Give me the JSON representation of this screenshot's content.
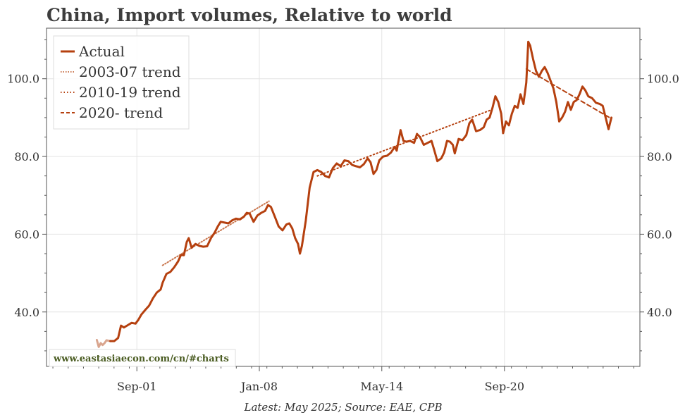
{
  "chart_data": {
    "type": "line",
    "title": "China, Import volumes, Relative to world",
    "source_note": "Latest: May 2025; Source: EAE, CPB",
    "watermark": "www.eastasiaecon.com/cn/#charts",
    "x_ticks": [
      "Sep-01",
      "Jan-08",
      "May-14",
      "Sep-20"
    ],
    "y_ticks": [
      "40.0",
      "60.0",
      "80.0",
      "100.0"
    ],
    "ylim": [
      26,
      113
    ],
    "legend_position": "top-left",
    "grid": true,
    "colors": {
      "actual": "#b5400f",
      "trend_2003": "#c9764e",
      "trend_2010": "#b5400f",
      "trend_2020": "#b5400f",
      "early_segment": "#d9a58e"
    },
    "series": [
      {
        "name": "Actual",
        "style": "solid",
        "points": [
          [
            1999.6,
            32.8
          ],
          [
            1999.7,
            31.0
          ],
          [
            1999.8,
            32.0
          ],
          [
            1999.9,
            31.5
          ],
          [
            2000.0,
            32.0
          ],
          [
            2000.1,
            32.7
          ],
          [
            2000.3,
            32.5
          ],
          [
            2000.5,
            32.5
          ],
          [
            2000.7,
            33.3
          ],
          [
            2000.85,
            36.5
          ],
          [
            2001.0,
            36.0
          ],
          [
            2001.2,
            36.6
          ],
          [
            2001.4,
            37.2
          ],
          [
            2001.6,
            37.0
          ],
          [
            2001.75,
            38.0
          ],
          [
            2001.9,
            39.3
          ],
          [
            2002.1,
            40.5
          ],
          [
            2002.3,
            41.6
          ],
          [
            2002.5,
            43.5
          ],
          [
            2002.7,
            45.0
          ],
          [
            2002.9,
            45.8
          ],
          [
            2003.0,
            47.5
          ],
          [
            2003.2,
            49.8
          ],
          [
            2003.4,
            50.3
          ],
          [
            2003.6,
            51.5
          ],
          [
            2003.8,
            53.0
          ],
          [
            2003.95,
            54.7
          ],
          [
            2004.1,
            54.6
          ],
          [
            2004.25,
            58.0
          ],
          [
            2004.35,
            59.0
          ],
          [
            2004.5,
            56.5
          ],
          [
            2004.7,
            57.5
          ],
          [
            2004.9,
            57.0
          ],
          [
            2005.1,
            56.8
          ],
          [
            2005.3,
            56.9
          ],
          [
            2005.5,
            59.0
          ],
          [
            2005.7,
            60.5
          ],
          [
            2005.85,
            62.0
          ],
          [
            2006.0,
            63.2
          ],
          [
            2006.2,
            63.0
          ],
          [
            2006.4,
            62.8
          ],
          [
            2006.6,
            63.6
          ],
          [
            2006.8,
            64.0
          ],
          [
            2007.0,
            63.8
          ],
          [
            2007.2,
            64.5
          ],
          [
            2007.35,
            65.5
          ],
          [
            2007.5,
            65.3
          ],
          [
            2007.7,
            63.2
          ],
          [
            2007.9,
            64.8
          ],
          [
            2008.1,
            65.5
          ],
          [
            2008.3,
            66.0
          ],
          [
            2008.45,
            67.5
          ],
          [
            2008.6,
            67.0
          ],
          [
            2008.8,
            64.5
          ],
          [
            2009.0,
            62.0
          ],
          [
            2009.2,
            61.0
          ],
          [
            2009.4,
            62.5
          ],
          [
            2009.55,
            62.8
          ],
          [
            2009.7,
            61.5
          ],
          [
            2009.85,
            59.0
          ],
          [
            2010.0,
            57.5
          ],
          [
            2010.1,
            55.0
          ],
          [
            2010.2,
            57.0
          ],
          [
            2010.4,
            63.5
          ],
          [
            2010.6,
            72.0
          ],
          [
            2010.8,
            76.0
          ],
          [
            2011.0,
            76.5
          ],
          [
            2011.2,
            76.0
          ],
          [
            2011.4,
            75.0
          ],
          [
            2011.6,
            74.6
          ],
          [
            2011.8,
            77.0
          ],
          [
            2012.0,
            78.2
          ],
          [
            2012.2,
            77.5
          ],
          [
            2012.4,
            79.0
          ],
          [
            2012.6,
            78.8
          ],
          [
            2012.8,
            77.8
          ],
          [
            2013.0,
            77.5
          ],
          [
            2013.2,
            77.2
          ],
          [
            2013.4,
            78.0
          ],
          [
            2013.6,
            79.5
          ],
          [
            2013.75,
            78.5
          ],
          [
            2013.9,
            75.5
          ],
          [
            2014.05,
            76.5
          ],
          [
            2014.2,
            79.0
          ],
          [
            2014.4,
            80.0
          ],
          [
            2014.6,
            80.2
          ],
          [
            2014.8,
            81.0
          ],
          [
            2015.0,
            82.5
          ],
          [
            2015.1,
            81.5
          ],
          [
            2015.3,
            86.8
          ],
          [
            2015.45,
            84.0
          ],
          [
            2015.6,
            83.8
          ],
          [
            2015.8,
            84.0
          ],
          [
            2016.0,
            83.5
          ],
          [
            2016.15,
            85.8
          ],
          [
            2016.3,
            85.0
          ],
          [
            2016.5,
            83.0
          ],
          [
            2016.7,
            83.5
          ],
          [
            2016.9,
            84.0
          ],
          [
            2017.05,
            81.5
          ],
          [
            2017.2,
            78.8
          ],
          [
            2017.4,
            79.5
          ],
          [
            2017.55,
            81.0
          ],
          [
            2017.7,
            84.0
          ],
          [
            2017.85,
            83.8
          ],
          [
            2018.0,
            83.0
          ],
          [
            2018.1,
            80.8
          ],
          [
            2018.3,
            84.5
          ],
          [
            2018.5,
            84.2
          ],
          [
            2018.7,
            85.5
          ],
          [
            2018.85,
            88.5
          ],
          [
            2019.0,
            89.5
          ],
          [
            2019.2,
            86.5
          ],
          [
            2019.4,
            86.8
          ],
          [
            2019.6,
            87.5
          ],
          [
            2019.75,
            89.5
          ],
          [
            2019.9,
            90.0
          ],
          [
            2020.05,
            92.5
          ],
          [
            2020.2,
            95.5
          ],
          [
            2020.35,
            94.0
          ],
          [
            2020.5,
            91.0
          ],
          [
            2020.6,
            86.0
          ],
          [
            2020.75,
            89.0
          ],
          [
            2020.9,
            88.0
          ],
          [
            2021.05,
            91.0
          ],
          [
            2021.2,
            93.0
          ],
          [
            2021.35,
            92.5
          ],
          [
            2021.5,
            96.0
          ],
          [
            2021.65,
            93.5
          ],
          [
            2021.8,
            99.0
          ],
          [
            2021.9,
            109.5
          ],
          [
            2022.0,
            108.5
          ],
          [
            2022.15,
            105.0
          ],
          [
            2022.3,
            102.0
          ],
          [
            2022.45,
            100.5
          ],
          [
            2022.6,
            102.0
          ],
          [
            2022.75,
            103.0
          ],
          [
            2022.9,
            101.5
          ],
          [
            2023.05,
            99.5
          ],
          [
            2023.2,
            97.5
          ],
          [
            2023.35,
            94.0
          ],
          [
            2023.5,
            89.0
          ],
          [
            2023.65,
            90.0
          ],
          [
            2023.8,
            91.5
          ],
          [
            2023.95,
            94.0
          ],
          [
            2024.1,
            92.0
          ],
          [
            2024.25,
            94.0
          ],
          [
            2024.4,
            94.5
          ],
          [
            2024.55,
            96.0
          ],
          [
            2024.7,
            98.0
          ],
          [
            2024.85,
            97.0
          ],
          [
            2025.0,
            95.5
          ],
          [
            2025.2,
            95.0
          ],
          [
            2025.4,
            93.8
          ],
          [
            2025.6,
            93.5
          ],
          [
            2025.75,
            93.0
          ],
          [
            2025.9,
            90.0
          ],
          [
            2026.05,
            87.0
          ],
          [
            2026.2,
            90.0
          ]
        ]
      },
      {
        "name": "2003-07 trend",
        "style": "dotted",
        "points": [
          [
            2003.0,
            52.0
          ],
          [
            2008.5,
            68.5
          ]
        ]
      },
      {
        "name": "2010-19 trend",
        "style": "dotted",
        "points": [
          [
            2011.0,
            75.0
          ],
          [
            2020.0,
            92.0
          ]
        ]
      },
      {
        "name": "2020- trend",
        "style": "dashed",
        "points": [
          [
            2021.8,
            102.5
          ],
          [
            2026.1,
            90.0
          ]
        ]
      }
    ],
    "x_tick_values": [
      2001.67,
      2008.0,
      2014.33,
      2020.67
    ],
    "xlim": [
      1997.0,
      2027.67
    ]
  }
}
